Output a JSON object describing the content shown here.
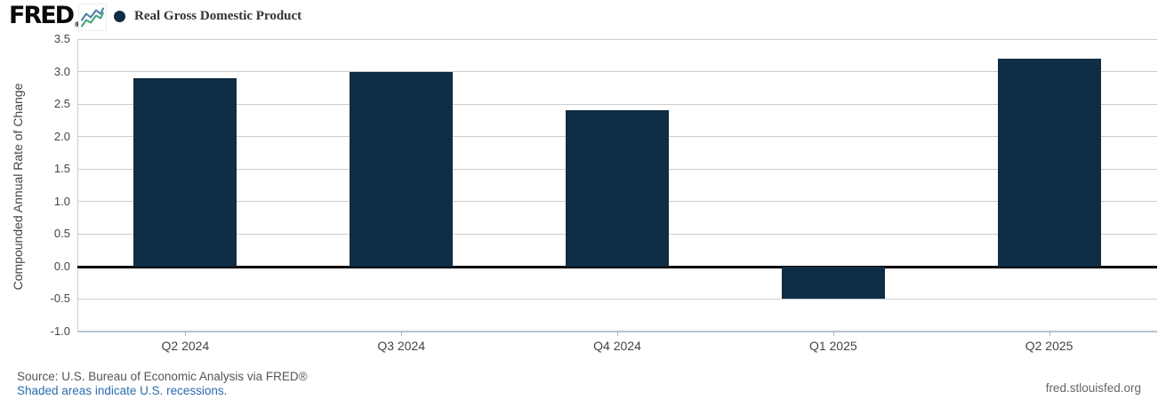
{
  "header": {
    "logo": "FRED",
    "registered_mark": "®"
  },
  "chart_data": {
    "type": "bar",
    "title": "Real Gross Domestic Product",
    "ylabel": "Compounded Annual Rate of Change",
    "categories": [
      "Q2 2024",
      "Q3 2024",
      "Q4 2024",
      "Q1 2025",
      "Q2 2025"
    ],
    "values": [
      2.9,
      3.0,
      2.4,
      -0.5,
      3.2
    ],
    "ylim": [
      -1.0,
      3.5
    ],
    "ytick_step": 0.5,
    "grid": true,
    "zero_line": true,
    "legend_position": "top-left",
    "bar_color": "#0f2d44"
  },
  "footer": {
    "source": "Source: U.S. Bureau of Economic Analysis via FRED®",
    "recession_note": "Shaded areas indicate U.S. recessions.",
    "site": "fred.stlouisfed.org"
  },
  "colors": {
    "bar": "#0f2d44",
    "grid": "#cccccc",
    "zero_line": "#000000",
    "axis_text": "#444444",
    "link": "#2b6cb0",
    "footer_text": "#555555",
    "site_text": "#666666"
  }
}
